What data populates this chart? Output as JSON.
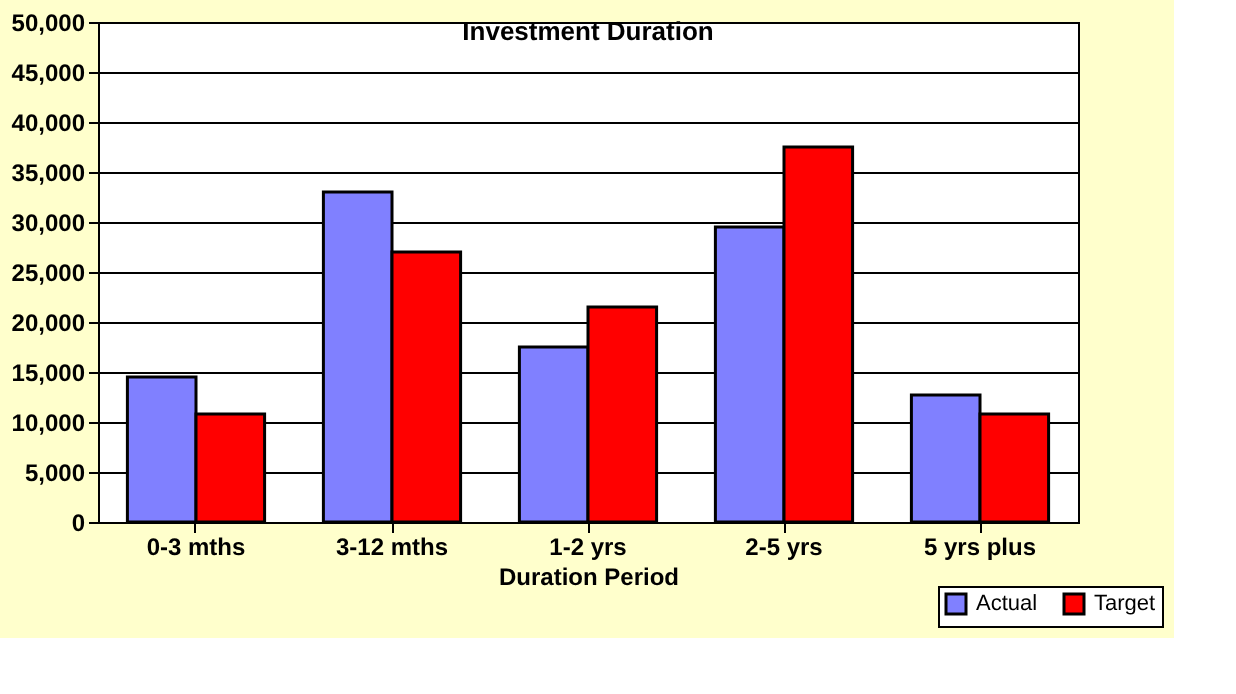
{
  "chart_data": {
    "type": "bar",
    "title": "Investment Duration",
    "xlabel": "Duration Period",
    "categories": [
      "0-3 mths",
      "3-12 mths",
      "1-2 yrs",
      "2-5 yrs",
      "5 yrs plus"
    ],
    "series": [
      {
        "name": "Actual",
        "color": "#8080ff",
        "values": [
          14500,
          33000,
          17500,
          29500,
          12700
        ]
      },
      {
        "name": "Target",
        "color": "#ff0000",
        "values": [
          10800,
          27000,
          21500,
          37500,
          10800
        ]
      }
    ],
    "ylim": [
      0,
      50000
    ],
    "yticks": [
      0,
      {
        "value": 5000,
        "label": "5,000"
      },
      {
        "value": 10000,
        "label": "10,000"
      },
      {
        "value": 15000,
        "label": "15,000"
      },
      {
        "value": 20000,
        "label": "20,000"
      },
      {
        "value": 25000,
        "label": "25,000"
      },
      {
        "value": 30000,
        "label": "30,000"
      },
      {
        "value": 35000,
        "label": "35,000"
      },
      {
        "value": 40000,
        "label": "40,000"
      },
      {
        "value": 45000,
        "label": "45,000"
      },
      {
        "value": 50000,
        "label": "50,000"
      }
    ],
    "grid": "y",
    "legend": "bottom right"
  }
}
